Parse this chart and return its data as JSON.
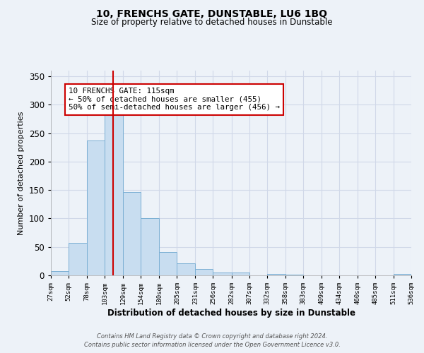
{
  "title": "10, FRENCHS GATE, DUNSTABLE, LU6 1BQ",
  "subtitle": "Size of property relative to detached houses in Dunstable",
  "xlabel": "Distribution of detached houses by size in Dunstable",
  "ylabel": "Number of detached properties",
  "bar_color": "#c8ddf0",
  "bar_edge_color": "#7bafd4",
  "bin_edges": [
    27,
    52,
    78,
    103,
    129,
    154,
    180,
    205,
    231,
    256,
    282,
    307,
    332,
    358,
    383,
    409,
    434,
    460,
    485,
    511,
    536
  ],
  "bar_heights": [
    8,
    57,
    237,
    291,
    147,
    100,
    41,
    21,
    11,
    5,
    5,
    0,
    3,
    1,
    0,
    0,
    0,
    0,
    0,
    2
  ],
  "tick_labels": [
    "27sqm",
    "52sqm",
    "78sqm",
    "103sqm",
    "129sqm",
    "154sqm",
    "180sqm",
    "205sqm",
    "231sqm",
    "256sqm",
    "282sqm",
    "307sqm",
    "332sqm",
    "358sqm",
    "383sqm",
    "409sqm",
    "434sqm",
    "460sqm",
    "485sqm",
    "511sqm",
    "536sqm"
  ],
  "vline_x": 115,
  "vline_color": "#cc0000",
  "annotation_text": "10 FRENCHS GATE: 115sqm\n← 50% of detached houses are smaller (455)\n50% of semi-detached houses are larger (456) →",
  "annotation_box_color": "#ffffff",
  "annotation_box_edge": "#cc0000",
  "ylim": [
    0,
    360
  ],
  "yticks": [
    0,
    50,
    100,
    150,
    200,
    250,
    300,
    350
  ],
  "grid_color": "#d0d8e8",
  "background_color": "#edf2f8",
  "footer_line1": "Contains HM Land Registry data © Crown copyright and database right 2024.",
  "footer_line2": "Contains public sector information licensed under the Open Government Licence v3.0."
}
